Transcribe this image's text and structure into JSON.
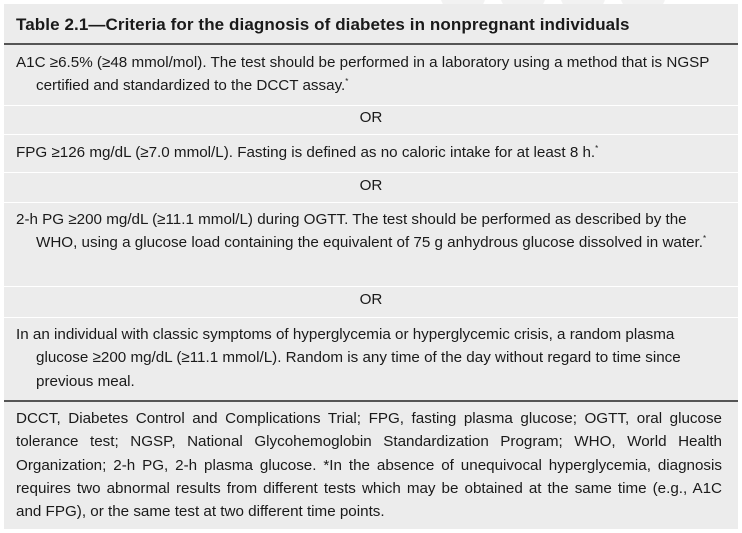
{
  "table": {
    "title": "Table 2.1—Criteria for the diagnosis of diabetes in nonpregnant individuals",
    "criteria": [
      {
        "text": "A1C ≥6.5% (≥48 mmol/mol). The test should be performed in a laboratory using a method that is NGSP certified and standardized to the DCCT assay.",
        "marker": "*"
      },
      {
        "text": "FPG ≥126 mg/dL (≥7.0 mmol/L). Fasting is defined as no caloric intake for at least 8 h.",
        "marker": "*"
      },
      {
        "text": "2-h PG ≥200 mg/dL (≥11.1 mmol/L) during OGTT. The test should be performed as described by the WHO, using a glucose load containing the equivalent of 75 g anhydrous glucose dissolved in water.",
        "marker": "*"
      },
      {
        "text": "In an individual with classic symptoms of hyperglycemia or hyperglycemic crisis, a random plasma glucose ≥200 mg/dL (≥11.1 mmol/L). Random is any time of the day without regard to time since previous meal.",
        "marker": ""
      }
    ],
    "separator": "OR",
    "footnote": "DCCT, Diabetes Control and Complications Trial; FPG, fasting plasma glucose; OGTT, oral glucose tolerance test; NGSP, National Glycohemoglobin Standardization Program; WHO, World Health Organization; 2-h PG, 2-h plasma glucose. *In the absence of unequivocal hyperglycemia, diagnosis requires two abnormal results from different tests which may be obtained at the same time (e.g., A1C and FPG), or the same test at two different time points."
  }
}
